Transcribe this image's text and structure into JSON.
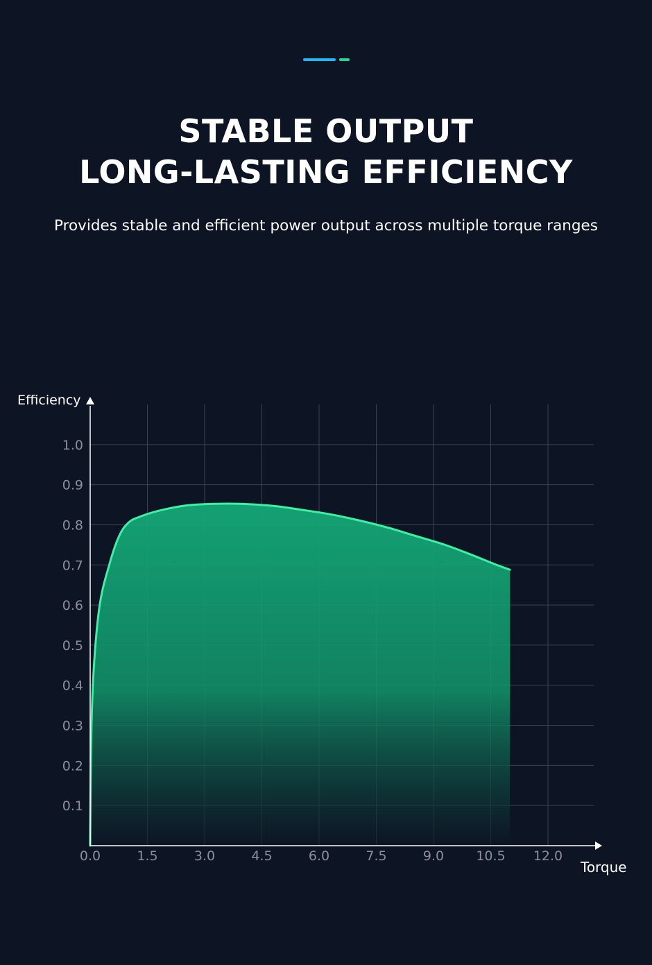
{
  "colors": {
    "background": "#0d1424",
    "accent_blue": "#1fb6f2",
    "accent_green": "#24d694",
    "curve": "#3df0a4",
    "fill_top": "#14a877",
    "grid": "#3a4254",
    "tick_text": "#8a8f9b",
    "axis_text": "#ffffff"
  },
  "header": {
    "title_line1": "STABLE OUTPUT",
    "title_line2": "LONG-LASTING EFFICIENCY",
    "subtitle": "Provides stable and efficient power output across multiple torque ranges"
  },
  "chart_data": {
    "type": "area",
    "xlabel": "Torque",
    "ylabel": "Efficiency",
    "grid": true,
    "x_ticks": [
      "0.0",
      "1.5",
      "3.0",
      "4.5",
      "6.0",
      "7.5",
      "9.0",
      "10.5",
      "12.0"
    ],
    "y_ticks": [
      "0.1",
      "0.2",
      "0.3",
      "0.4",
      "0.5",
      "0.6",
      "0.7",
      "0.8",
      "0.9",
      "1.0"
    ],
    "xlim": [
      0,
      13.2
    ],
    "ylim": [
      0,
      1.1
    ],
    "series": [
      {
        "x": [
          0.0,
          0.03,
          0.1,
          0.25,
          0.5,
          0.75,
          1.0,
          1.3,
          1.8,
          2.5,
          3.2,
          4.0,
          4.8,
          5.5,
          6.3,
          7.0,
          7.8,
          8.5,
          9.3,
          10.0,
          10.6,
          11.0
        ],
        "y": [
          0.0,
          0.28,
          0.45,
          0.6,
          0.7,
          0.77,
          0.805,
          0.82,
          0.835,
          0.848,
          0.852,
          0.852,
          0.847,
          0.838,
          0.826,
          0.812,
          0.793,
          0.773,
          0.75,
          0.725,
          0.702,
          0.688
        ]
      }
    ]
  }
}
